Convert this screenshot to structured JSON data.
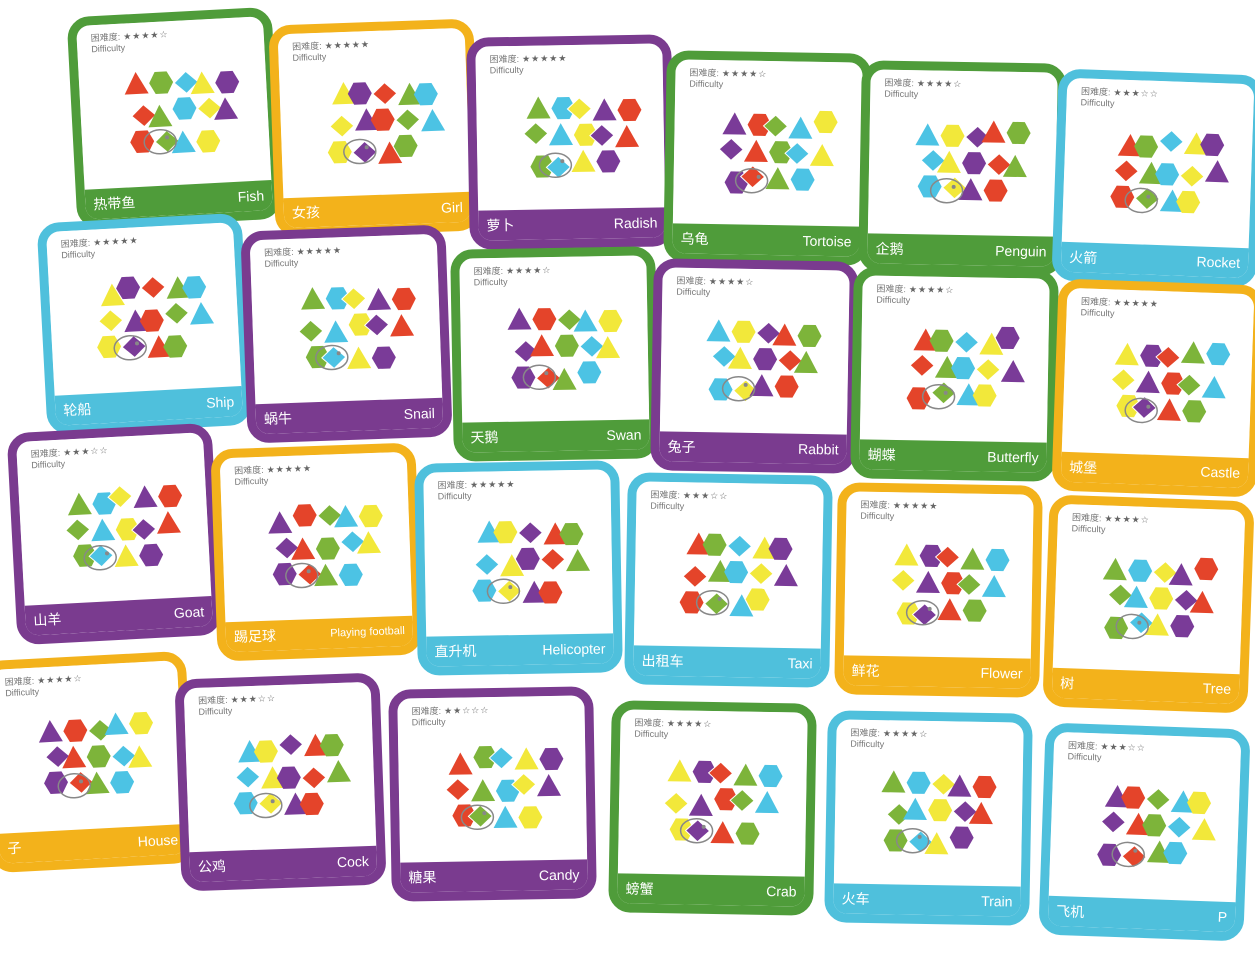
{
  "difficulty_label_cn": "困难度:",
  "difficulty_label_en": "Difficulty",
  "colors": {
    "green": "#4f9c3a",
    "orange": "#f3b21b",
    "purple": "#7a3b8f",
    "blue": "#4fc0dc",
    "piece_red": "#e4442a",
    "piece_yellow": "#f2e83a",
    "piece_green": "#7db43a",
    "piece_purple": "#7a3b98",
    "piece_blue": "#4cc3e4"
  },
  "cards": [
    {
      "cn": "热带鱼",
      "en": "Fish",
      "color": "green",
      "stars": 4
    },
    {
      "cn": "女孩",
      "en": "Girl",
      "color": "orange",
      "stars": 5
    },
    {
      "cn": "萝卜",
      "en": "Radish",
      "color": "purple",
      "stars": 5
    },
    {
      "cn": "乌龟",
      "en": "Tortoise",
      "color": "green",
      "stars": 4
    },
    {
      "cn": "企鹅",
      "en": "Penguin",
      "color": "green",
      "stars": 4
    },
    {
      "cn": "火箭",
      "en": "Rocket",
      "color": "blue",
      "stars": 3
    },
    {
      "cn": "轮船",
      "en": "Ship",
      "color": "blue",
      "stars": 5
    },
    {
      "cn": "蜗牛",
      "en": "Snail",
      "color": "purple",
      "stars": 5
    },
    {
      "cn": "天鹅",
      "en": "Swan",
      "color": "green",
      "stars": 4
    },
    {
      "cn": "兔子",
      "en": "Rabbit",
      "color": "purple",
      "stars": 4
    },
    {
      "cn": "蝴蝶",
      "en": "Butterfly",
      "color": "green",
      "stars": 4
    },
    {
      "cn": "城堡",
      "en": "Castle",
      "color": "orange",
      "stars": 5
    },
    {
      "cn": "山羊",
      "en": "Goat",
      "color": "purple",
      "stars": 3
    },
    {
      "cn": "踢足球",
      "en": "Playing football",
      "color": "orange",
      "stars": 5
    },
    {
      "cn": "直升机",
      "en": "Helicopter",
      "color": "blue",
      "stars": 5
    },
    {
      "cn": "出租车",
      "en": "Taxi",
      "color": "blue",
      "stars": 3
    },
    {
      "cn": "鲜花",
      "en": "Flower",
      "color": "orange",
      "stars": 5
    },
    {
      "cn": "树",
      "en": "Tree",
      "color": "orange",
      "stars": 4
    },
    {
      "cn": "子",
      "en": "House",
      "color": "orange",
      "stars": 4
    },
    {
      "cn": "公鸡",
      "en": "Cock",
      "color": "purple",
      "stars": 3
    },
    {
      "cn": "糖果",
      "en": "Candy",
      "color": "purple",
      "stars": 2
    },
    {
      "cn": "螃蟹",
      "en": "Crab",
      "color": "green",
      "stars": 4
    },
    {
      "cn": "火车",
      "en": "Train",
      "color": "blue",
      "stars": 4
    },
    {
      "cn": "飞机",
      "en": "P",
      "color": "blue",
      "stars": 3
    }
  ]
}
